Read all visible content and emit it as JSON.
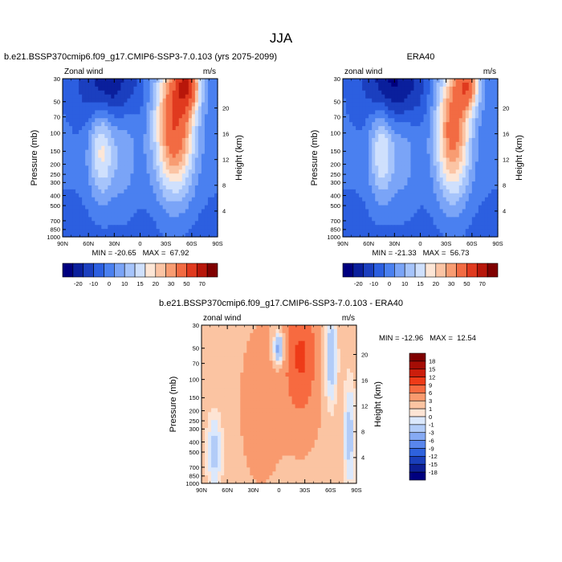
{
  "figure": {
    "title": "JJA"
  },
  "chart_data": [
    {
      "type": "heatmap",
      "title": "b.e21.BSSP370cmip6.f09_g17.CMIP6-SSP3-7.0.103 (yrs 2075-2099)",
      "left_string": "Zonal wind",
      "right_string": "m/s",
      "xlabel": "",
      "ylabel": "Pressure (mb)",
      "y2label": "Height (km)",
      "x_ticks": [
        "90N",
        "60N",
        "30N",
        "0",
        "30S",
        "60S",
        "90S"
      ],
      "pressure_ticks": [
        "30",
        "50",
        "70",
        "100",
        "150",
        "200",
        "250",
        "300",
        "400",
        "500",
        "700",
        "850",
        "1000"
      ],
      "height_ticks": [
        "4",
        "8",
        "12",
        "16",
        "20"
      ],
      "stats": "MIN = -20.65   MAX =  67.92",
      "min": -20.65,
      "max": 67.92,
      "colorbar_labels": [
        "-20",
        "-10",
        "0",
        "10",
        "15",
        "20",
        "30",
        "50",
        "70"
      ]
    },
    {
      "type": "heatmap",
      "title": "ERA40",
      "left_string": "zonal wind",
      "right_string": "m/s",
      "xlabel": "",
      "ylabel": "Pressure (mb)",
      "y2label": "Height (km)",
      "x_ticks": [
        "90N",
        "60N",
        "30N",
        "0",
        "30S",
        "60S",
        "90S"
      ],
      "pressure_ticks": [
        "30",
        "50",
        "70",
        "100",
        "150",
        "200",
        "250",
        "300",
        "400",
        "500",
        "700",
        "850",
        "1000"
      ],
      "height_ticks": [
        "4",
        "8",
        "12",
        "16",
        "20"
      ],
      "stats": "MIN = -21.33   MAX =  56.73",
      "min": -21.33,
      "max": 56.73,
      "colorbar_labels": [
        "-20",
        "-10",
        "0",
        "10",
        "15",
        "20",
        "30",
        "50",
        "70"
      ]
    },
    {
      "type": "heatmap",
      "title": "b.e21.BSSP370cmip6.f09_g17.CMIP6-SSP3-7.0.103 - ERA40",
      "left_string": "zonal wind",
      "right_string": "m/s",
      "xlabel": "",
      "ylabel": "Pressure (mb)",
      "y2label": "Height (km)",
      "x_ticks": [
        "90N",
        "60N",
        "30N",
        "0",
        "30S",
        "60S",
        "90S"
      ],
      "pressure_ticks": [
        "30",
        "50",
        "70",
        "100",
        "150",
        "200",
        "250",
        "300",
        "400",
        "500",
        "700",
        "850",
        "1000"
      ],
      "height_ticks": [
        "4",
        "8",
        "12",
        "16",
        "20"
      ],
      "stats": "MIN = -12.96   MAX =  12.54",
      "min": -12.96,
      "max": 12.54,
      "colorbar_labels": [
        "18",
        "15",
        "12",
        "9",
        "6",
        "3",
        "1",
        "0",
        "-1",
        "-3",
        "-6",
        "-9",
        "-12",
        "-15",
        "-18"
      ]
    }
  ],
  "colormaps": {
    "field": [
      "#00007f",
      "#0a1f9c",
      "#1b3fbf",
      "#2c5fe0",
      "#4a80f0",
      "#7aa4f7",
      "#a6c4fb",
      "#cfe0fd",
      "#fde6d6",
      "#fbc4a4",
      "#f89c72",
      "#f26b43",
      "#e03a1f",
      "#b8170a",
      "#7f0000"
    ],
    "difference": [
      "#7f0000",
      "#a50d05",
      "#cc1e0c",
      "#ee3b18",
      "#f76a40",
      "#f99a6e",
      "#fbc4a2",
      "#fde4d4",
      "#dbe8fc",
      "#b2ccf8",
      "#86aaf3",
      "#5986ec",
      "#2e62dd",
      "#1a3fbb",
      "#0d1f95",
      "#00007f"
    ]
  }
}
